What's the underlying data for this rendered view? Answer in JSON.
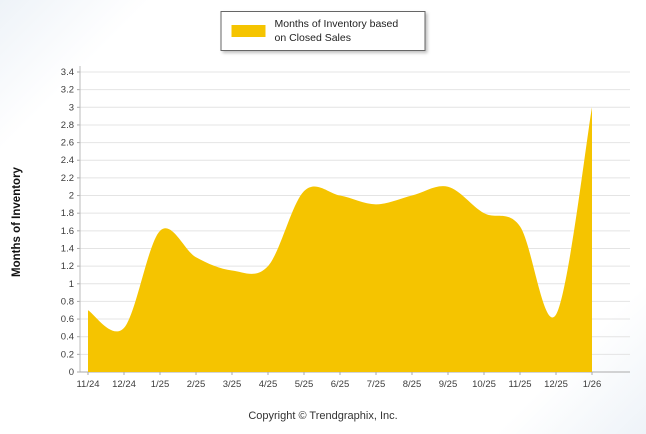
{
  "legend": {
    "label": "Months of Inventory based on Closed Sales",
    "swatch_color": "#F5C400"
  },
  "y_axis_title": "Months of Inventory",
  "footer": "Copyright © Trendgraphix, Inc.",
  "chart_data": {
    "type": "area",
    "title": "",
    "xlabel": "",
    "ylabel": "Months of Inventory",
    "categories": [
      "11/24",
      "12/24",
      "1/25",
      "2/25",
      "3/25",
      "4/25",
      "5/25",
      "6/25",
      "7/25",
      "8/25",
      "9/25",
      "10/25",
      "11/25",
      "12/25",
      "1/26"
    ],
    "values": [
      0.7,
      0.5,
      1.6,
      1.3,
      1.15,
      1.2,
      2.05,
      2.0,
      1.9,
      2.0,
      2.1,
      1.8,
      1.65,
      0.65,
      3.0
    ],
    "ylim": [
      0,
      3.4
    ],
    "ytick_step": 0.2,
    "fill_color": "#F5C400",
    "grid": true,
    "legend_entries": [
      "Months of Inventory based on Closed Sales"
    ],
    "legend_position": "top"
  }
}
